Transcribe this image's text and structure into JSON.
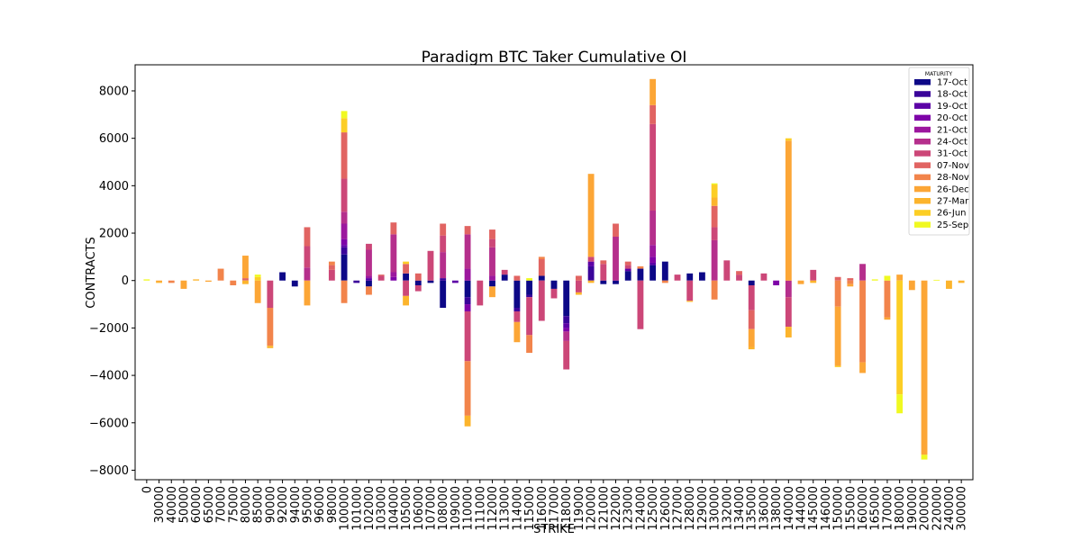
{
  "chart_data": {
    "type": "bar",
    "stacked": true,
    "title": "Paradigm BTC Taker Cumulative OI",
    "xlabel": "STRIKE",
    "ylabel": "CONTRACTS",
    "ylim": [
      -8400,
      9100
    ],
    "yticks": [
      -8000,
      -6000,
      -4000,
      -2000,
      0,
      2000,
      4000,
      6000,
      8000
    ],
    "yticklabels": [
      "−8000",
      "−6000",
      "−4000",
      "−2000",
      "0",
      "2000",
      "4000",
      "6000",
      "8000"
    ],
    "grid": false,
    "legend_title": "MATURITY",
    "legend_position": "top-right",
    "categories": [
      "0",
      "30000",
      "40000",
      "50000",
      "60000",
      "65000",
      "70000",
      "75000",
      "80000",
      "85000",
      "90000",
      "92000",
      "94000",
      "95000",
      "96000",
      "98000",
      "100000",
      "101000",
      "102000",
      "103000",
      "104000",
      "105000",
      "106000",
      "107000",
      "108000",
      "109000",
      "110000",
      "111000",
      "112000",
      "113000",
      "114000",
      "115000",
      "116000",
      "117000",
      "118000",
      "119000",
      "120000",
      "121000",
      "122000",
      "123000",
      "124000",
      "125000",
      "126000",
      "127000",
      "128000",
      "129000",
      "130000",
      "132000",
      "134000",
      "135000",
      "136000",
      "138000",
      "140000",
      "144000",
      "145000",
      "146000",
      "150000",
      "155000",
      "160000",
      "165000",
      "170000",
      "180000",
      "190000",
      "200000",
      "220000",
      "240000",
      "300000"
    ],
    "series": [
      {
        "name": "17-Oct",
        "color": "#0d0887",
        "values": {
          "92000": 350,
          "94000": -250,
          "100000": 1100,
          "102000": -250,
          "105000": 300,
          "106000": -200,
          "107000": -100,
          "108000": -1150,
          "110000": -700,
          "112000": -250,
          "113000": 250,
          "114000": -1150,
          "115000": -600,
          "116000": 200,
          "117000": -350,
          "118000": -1500,
          "121000": -150,
          "122000": -150,
          "123000": 400,
          "124000": 500,
          "125000": 650,
          "126000": 800,
          "128000": 300,
          "129000": 350,
          "135000": -200
        }
      },
      {
        "name": "18-Oct",
        "color": "#3a049a",
        "values": {
          "100000": 300,
          "101000": -100,
          "108000": 100,
          "110000": -300,
          "114000": -150,
          "115000": -100,
          "118000": -300,
          "120000": 600
        }
      },
      {
        "name": "19-Oct",
        "color": "#5c01a6",
        "values": {
          "100000": 100,
          "102000": 100,
          "109000": -100,
          "118000": -200,
          "120000": 200,
          "123000": 100,
          "125000": 100
        }
      },
      {
        "name": "20-Oct",
        "color": "#7e03a8",
        "values": {
          "100000": 250,
          "104000": 150,
          "110000": -300,
          "118000": -150,
          "125000": 250,
          "138000": -200
        }
      },
      {
        "name": "21-Oct",
        "color": "#9c179e",
        "values": {
          "100000": 650,
          "102000": 100,
          "104000": 200,
          "110000": 500,
          "112000": 200,
          "125000": 500
        }
      },
      {
        "name": "24-Oct",
        "color": "#b52f8c",
        "values": {
          "95000": 550,
          "100000": 500,
          "102000": 1100,
          "104000": 1600,
          "108000": 1100,
          "110000": 1450,
          "112000": 1200,
          "118000": -400,
          "122000": 1850,
          "125000": 1450,
          "130000": 1700,
          "140000": -700,
          "160000": 700
        }
      },
      {
        "name": "31-Oct",
        "color": "#cc4778",
        "values": {
          "90000": -1150,
          "95000": 900,
          "98000": 450,
          "100000": 1400,
          "102000": 250,
          "103000": 200,
          "105000": -650,
          "106000": -250,
          "107000": 1250,
          "108000": 700,
          "110000": -2100,
          "111000": -1050,
          "112000": 350,
          "113000": 200,
          "114000": -450,
          "115000": -1600,
          "116000": -1700,
          "117000": -400,
          "118000": -1200,
          "119000": -500,
          "120000": 200,
          "121000": 700,
          "123000": 150,
          "124000": -2050,
          "125000": 3650,
          "127000": 250,
          "128000": -850,
          "130000": 550,
          "132000": 850,
          "134000": 250,
          "135000": -1050,
          "136000": 300,
          "140000": -1250,
          "145000": 450
        }
      },
      {
        "name": "07-Nov",
        "color": "#e16462",
        "values": {
          "80000": 100,
          "95000": 800,
          "98000": 200,
          "100000": 1950,
          "103000": 50,
          "104000": 500,
          "105000": 400,
          "106000": 300,
          "108000": 500,
          "110000": 350,
          "112000": 400,
          "114000": 200,
          "116000": 700,
          "119000": 200,
          "121000": 150,
          "122000": 550,
          "123000": 150,
          "125000": 800,
          "130000": 900,
          "134000": 150,
          "135000": -800,
          "150000": 150,
          "155000": 100
        }
      },
      {
        "name": "28-Nov",
        "color": "#f2844b",
        "values": {
          "40000": -100,
          "70000": 500,
          "75000": -200,
          "90000": -1600,
          "98000": 150,
          "100000": -950,
          "102000": -350,
          "110000": -2300,
          "115000": -750,
          "116000": 100,
          "124000": 100,
          "126000": -100,
          "130000": -800,
          "150000": -1100,
          "155000": -150,
          "160000": -3450,
          "170000": -1550
        }
      },
      {
        "name": "26-Dec",
        "color": "#fca636",
        "values": {
          "30000": -50,
          "50000": -350,
          "65000": -50,
          "80000": 950,
          "85000": -950,
          "95000": -1050,
          "112000": -450,
          "114000": -850,
          "120000": 3500,
          "125000": 1100,
          "135000": -750,
          "140000": 5900,
          "144000": -150,
          "150000": -2500,
          "155000": -100,
          "160000": -450,
          "170000": -100,
          "180000": 250,
          "190000": -400,
          "200000": -7350
        }
      },
      {
        "name": "27-Mar",
        "color": "#fcb42c",
        "values": {
          "30000": -50,
          "60000": 50,
          "80000": -150,
          "90000": -100,
          "105000": -400,
          "110000": -450,
          "119000": -100,
          "120000": -100,
          "128000": -50,
          "130000": 350,
          "135000": -100,
          "140000": -450,
          "145000": -100,
          "240000": -350,
          "300000": -100
        }
      },
      {
        "name": "26-Jun",
        "color": "#fcce25",
        "values": {
          "85000": 150,
          "100000": 600,
          "105000": 100,
          "130000": 550,
          "140000": 100,
          "150000": -50,
          "180000": -4800
        }
      },
      {
        "name": "25-Sep",
        "color": "#f0f921",
        "values": {
          "0": 50,
          "85000": 100,
          "100000": 300,
          "115000": 100,
          "130000": 50,
          "165000": 50,
          "170000": 200,
          "180000": -800,
          "200000": -200,
          "220000": 30
        }
      }
    ]
  }
}
